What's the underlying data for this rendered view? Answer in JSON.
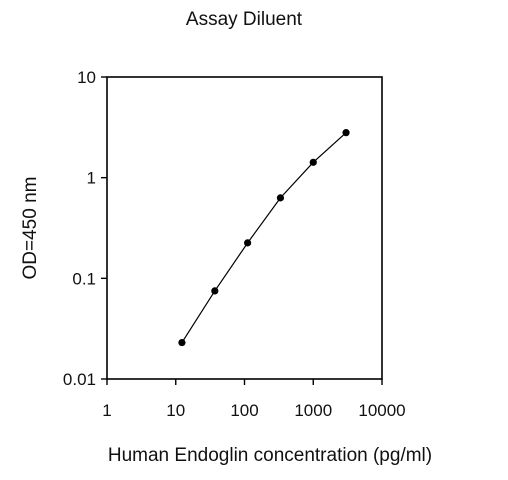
{
  "chart_data": {
    "type": "line",
    "title": "Assay Diluent",
    "xlabel": "Human Endoglin  concentration (pg/ml)",
    "ylabel": "OD=450 nm",
    "x_scale": "log",
    "y_scale": "log",
    "xlim": [
      1,
      10000
    ],
    "ylim": [
      0.01,
      10
    ],
    "x_ticks": [
      1,
      10,
      100,
      1000,
      10000
    ],
    "x_tick_labels": [
      "1",
      "10",
      "100",
      "1000",
      "10000"
    ],
    "y_ticks": [
      0.01,
      0.1,
      1,
      10
    ],
    "y_tick_labels": [
      "0.01",
      "0.1",
      "1",
      "10"
    ],
    "grid": false,
    "series": [
      {
        "x": [
          12.3,
          37,
          111,
          333,
          1000,
          3000
        ],
        "y": [
          0.023,
          0.075,
          0.225,
          0.63,
          1.42,
          2.8
        ]
      }
    ]
  }
}
